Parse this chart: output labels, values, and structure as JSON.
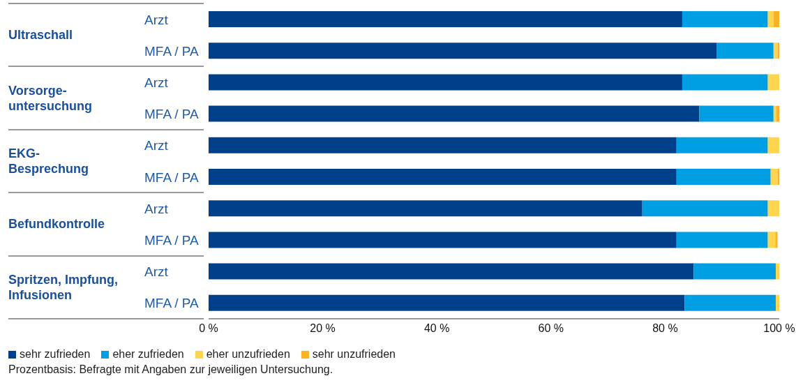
{
  "chart_data": {
    "type": "bar",
    "orientation": "horizontal",
    "stacked": true,
    "categories": [
      "Arzt",
      "MFA / PA",
      "Arzt",
      "MFA / PA",
      "Arzt",
      "MFA / PA",
      "Arzt",
      "MFA / PA",
      "Arzt",
      "MFA / PA"
    ],
    "series": [
      {
        "name": "sehr zufrieden",
        "color": "#003f8a",
        "values": [
          83,
          89,
          83,
          86,
          82,
          82,
          76,
          82,
          85,
          83.4
        ]
      },
      {
        "name": "eher zufrieden",
        "color": "#009ee3",
        "values": [
          15,
          10,
          15,
          13,
          16,
          16.5,
          22,
          16,
          14.4,
          16
        ]
      },
      {
        "name": "eher unzufrieden",
        "color": "#ffd54f",
        "values": [
          1,
          0.7,
          2,
          0.5,
          2,
          1.2,
          2,
          1.3,
          0.6,
          0.6
        ]
      },
      {
        "name": "sehr unzufrieden",
        "color": "#fbb324",
        "values": [
          1,
          0.3,
          0,
          0.5,
          0,
          0.3,
          0,
          0.4,
          0,
          0
        ]
      }
    ],
    "xlim": [
      0,
      100
    ],
    "xticks": [
      {
        "value": 0,
        "label": "0 %"
      },
      {
        "value": 20,
        "label": "20 %"
      },
      {
        "value": 40,
        "label": "40 %"
      },
      {
        "value": 60,
        "label": "60 %"
      },
      {
        "value": 80,
        "label": "80 %"
      },
      {
        "value": 100,
        "label": "100 %"
      }
    ],
    "grid": false,
    "legend": "bottom",
    "annotations": [
      "Ultraschall",
      "Vorsorge-\nuntersuchung",
      "EKG-\nBesprechung",
      "Befundkontrolle",
      "Spritzen, Impfung,\nInfusionen",
      "Prozentbasis: Befragte mit Angaben zur jeweiligen Untersuchung."
    ]
  }
}
